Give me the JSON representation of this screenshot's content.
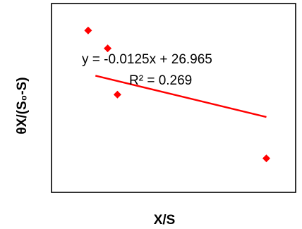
{
  "chart_data": {
    "type": "scatter",
    "xlabel": "X/S",
    "ylabel": "θX/(S₀-S)",
    "xlim": [
      0,
      1000
    ],
    "ylim": [
      0,
      40
    ],
    "grid": false,
    "series": [
      {
        "points": [
          {
            "x": 150,
            "y": 34.3
          },
          {
            "x": 230,
            "y": 30.5
          },
          {
            "x": 270,
            "y": 20.7
          },
          {
            "x": 880,
            "y": 7.2
          }
        ],
        "color": "#ff0000"
      }
    ],
    "trendline": {
      "slope": -0.0125,
      "intercept": 26.965,
      "x_range": [
        180,
        880
      ],
      "color": "#ff0000",
      "equation_label": "y = -0.0125x + 26.965",
      "r2_label": "R² = 0.269"
    }
  }
}
